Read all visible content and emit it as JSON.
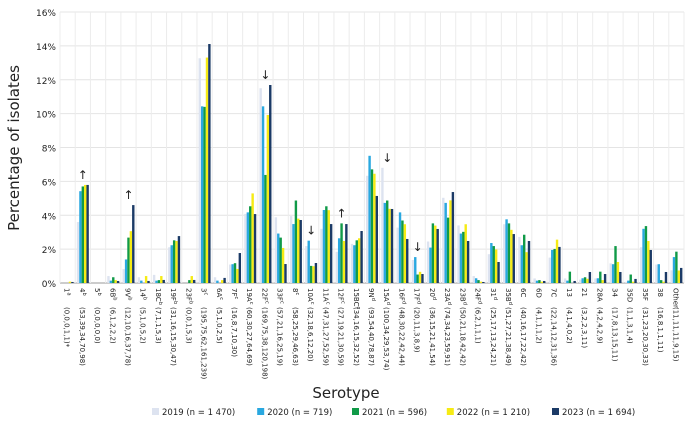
{
  "chart_data": {
    "type": "bar",
    "xlabel": "Serotype",
    "ylabel": "Percentage of isolates",
    "ylim": [
      0,
      16
    ],
    "yticks": [
      "0%",
      "2%",
      "4%",
      "6%",
      "8%",
      "10%",
      "12%",
      "14%",
      "16%"
    ],
    "grid": true,
    "legend_position": "bottom",
    "categories": [
      {
        "label": "1",
        "sup": "a",
        "counts": "(0,0,0,1,1)*"
      },
      {
        "label": "4",
        "sup": "b",
        "counts": "(53,39,34,70,98)",
        "arrow": "↑"
      },
      {
        "label": "5",
        "sup": "b",
        "counts": "(0,0,0,0,0)"
      },
      {
        "label": "6B",
        "sup": "b",
        "counts": "(6,1,2,2,2)"
      },
      {
        "label": "9V",
        "sup": "b",
        "counts": "(12,10,16,37,78)",
        "arrow": "↑"
      },
      {
        "label": "14",
        "sup": "b",
        "counts": "(5,1,0,5,2)"
      },
      {
        "label": "18C",
        "sup": "b",
        "counts": "(7,1,1,5,3)"
      },
      {
        "label": "19F",
        "sup": "b",
        "counts": "(31,16,15,30,47)"
      },
      {
        "label": "23F",
        "sup": "b",
        "counts": "(0,0,1,5,3)"
      },
      {
        "label": "3",
        "sup": "c",
        "counts": "(195,75,62,161,239)"
      },
      {
        "label": "6A",
        "sup": "c",
        "counts": "(5,1,0,2,5)"
      },
      {
        "label": "7F",
        "sup": "c",
        "counts": "(16,8,7,10,30)"
      },
      {
        "label": "19A",
        "sup": "c",
        "counts": "(60,30,27,64,69)"
      },
      {
        "label": "22F",
        "sup": "c",
        "counts": "(169,75,38,120,198)",
        "arrow": "↓"
      },
      {
        "label": "33F",
        "sup": "c",
        "counts": "(57,21,16,25,19)"
      },
      {
        "label": "8",
        "sup": "c",
        "counts": "(58,25,29,46,63)"
      },
      {
        "label": "10A",
        "sup": "c",
        "counts": "(32,18,6,12,20)",
        "arrow": "↓"
      },
      {
        "label": "11A",
        "sup": "c",
        "counts": "(47,31,27,52,59)"
      },
      {
        "label": "12F",
        "sup": "c",
        "counts": "(27,19,21,30,59)",
        "arrow": "↑"
      },
      {
        "label": "15BC",
        "sup": "c",
        "counts": "(34,16,15,32,52)"
      },
      {
        "label": "9N",
        "sup": "d",
        "counts": "(93,54,40,78,87)"
      },
      {
        "label": "15A",
        "sup": "d",
        "counts": "(100,34,29,53,74)",
        "arrow": "↓"
      },
      {
        "label": "16F",
        "sup": "d",
        "counts": "(48,30,22,42,44)"
      },
      {
        "label": "17F",
        "sup": "d",
        "counts": "(20,11,3,8,9)",
        "arrow": "↓"
      },
      {
        "label": "20",
        "sup": "d",
        "counts": "(36,15,21,41,54)"
      },
      {
        "label": "23A",
        "sup": "d",
        "counts": "(74,34,23,59,91)"
      },
      {
        "label": "23B",
        "sup": "d",
        "counts": "(50,21,18,42,42)"
      },
      {
        "label": "24F",
        "sup": "d",
        "counts": "(6,2,1,1,1)"
      },
      {
        "label": "31",
        "sup": "d",
        "counts": "(25,17,13,24,21)"
      },
      {
        "label": "35B",
        "sup": "d",
        "counts": "(51,27,21,38,49)"
      },
      {
        "label": "6C",
        "sup": "",
        "counts": "(40,16,17,22,42)"
      },
      {
        "label": "6D",
        "sup": "",
        "counts": "(4,1,1,1,2)"
      },
      {
        "label": "7C",
        "sup": "",
        "counts": "(22,14,12,31,36)"
      },
      {
        "label": "13",
        "sup": "",
        "counts": "(4,1,4,0,2)"
      },
      {
        "label": "21",
        "sup": "",
        "counts": "(3,2,2,3,11)"
      },
      {
        "label": "28A",
        "sup": "",
        "counts": "(4,2,4,2,9)"
      },
      {
        "label": "34",
        "sup": "",
        "counts": "(17,8,13,15,11)"
      },
      {
        "label": "35D",
        "sup": "",
        "counts": "(1,1,3,1,4)"
      },
      {
        "label": "35F",
        "sup": "",
        "counts": "(31,23,20,30,33)"
      },
      {
        "label": "38",
        "sup": "",
        "counts": "(16,8,1,1,11)"
      },
      {
        "label": "Other",
        "sup": "",
        "counts": "(11,11,11,9,15)"
      }
    ],
    "series": [
      {
        "name": "2019 (n = 1 470)",
        "color": "#dde3f0",
        "values": [
          0,
          3.6,
          0,
          0.41,
          0.82,
          0.34,
          0.48,
          2.11,
          0,
          13.27,
          0.34,
          1.09,
          4.08,
          11.5,
          3.88,
          3.95,
          2.18,
          3.2,
          1.84,
          2.31,
          6.33,
          6.8,
          3.27,
          1.36,
          2.45,
          5.03,
          3.4,
          0.41,
          1.7,
          3.47,
          2.72,
          0.27,
          1.5,
          0.27,
          0.2,
          0.27,
          1.16,
          0.07,
          2.11,
          1.09,
          0.75
        ]
      },
      {
        "name": "2020 (n = 719)",
        "color": "#29a8e0",
        "values": [
          0,
          5.42,
          0,
          0.14,
          1.39,
          0.14,
          0.14,
          2.23,
          0,
          10.43,
          0.14,
          1.11,
          4.17,
          10.43,
          2.92,
          3.48,
          2.5,
          4.31,
          2.64,
          2.23,
          7.51,
          4.73,
          4.17,
          1.53,
          2.09,
          4.73,
          2.92,
          0.28,
          2.36,
          3.76,
          2.23,
          0.14,
          1.95,
          0.14,
          0.28,
          0.28,
          1.11,
          0.14,
          3.2,
          1.11,
          1.53
        ]
      },
      {
        "name": "2021 (n = 596)",
        "color": "#109a48",
        "values": [
          0,
          5.7,
          0,
          0.34,
          2.68,
          0,
          0.17,
          2.52,
          0.17,
          10.4,
          0,
          1.17,
          4.53,
          6.38,
          2.68,
          4.87,
          1.01,
          4.53,
          3.52,
          2.52,
          6.71,
          4.87,
          3.69,
          0.5,
          3.52,
          3.86,
          3.02,
          0.17,
          2.18,
          3.52,
          2.85,
          0.17,
          2.01,
          0.67,
          0.34,
          0.67,
          2.18,
          0.5,
          3.36,
          0.17,
          1.85
        ]
      },
      {
        "name": "2022 (n = 1 210)",
        "color": "#f6eb14",
        "values": [
          0.08,
          5.79,
          0,
          0.17,
          3.06,
          0.41,
          0.41,
          2.48,
          0.41,
          13.31,
          0.17,
          0.83,
          5.29,
          9.92,
          2.07,
          3.8,
          0.99,
          4.3,
          2.48,
          2.64,
          6.45,
          4.38,
          3.47,
          0.66,
          3.39,
          4.88,
          3.47,
          0.08,
          1.98,
          3.14,
          1.82,
          0.08,
          2.56,
          0,
          0.25,
          0.17,
          1.24,
          0.08,
          2.48,
          0.08,
          0.74
        ]
      },
      {
        "name": "2023 (n = 1 694)",
        "color": "#1b3a66",
        "values": [
          0.06,
          5.79,
          0,
          0.12,
          4.6,
          0.12,
          0.18,
          2.77,
          0.18,
          14.11,
          0.3,
          1.77,
          4.07,
          11.69,
          1.12,
          3.72,
          1.18,
          3.48,
          3.48,
          3.07,
          5.14,
          4.37,
          2.6,
          0.53,
          3.19,
          5.37,
          2.48,
          0.06,
          1.24,
          2.89,
          2.48,
          0.12,
          2.13,
          0.12,
          0.65,
          0.53,
          0.65,
          0.24,
          1.95,
          0.65,
          0.89
        ]
      }
    ]
  }
}
